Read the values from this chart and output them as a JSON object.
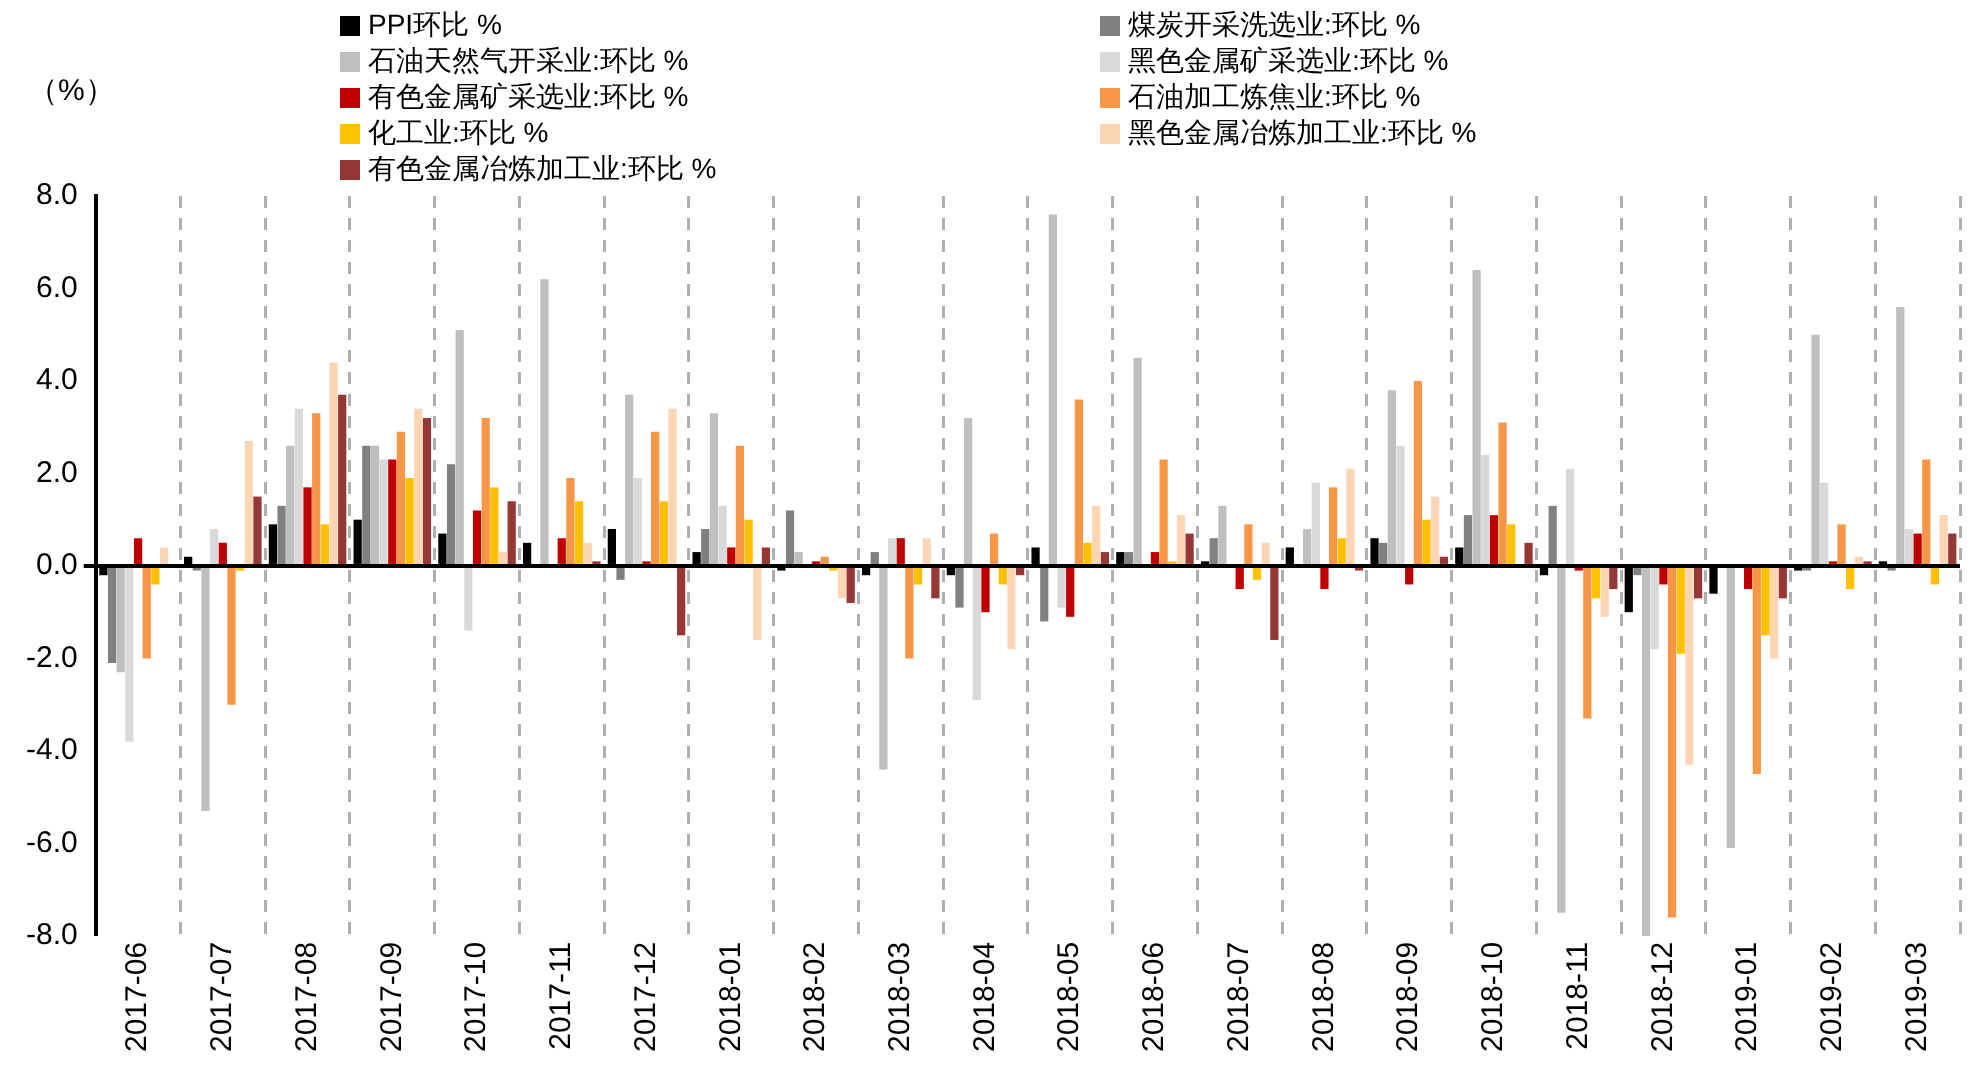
{
  "chart_data": {
    "type": "bar",
    "ylabel": "（%）",
    "legend": "top",
    "grid": "x",
    "categories": [
      "2017-06",
      "2017-07",
      "2017-08",
      "2017-09",
      "2017-10",
      "2017-11",
      "2017-12",
      "2018-01",
      "2018-02",
      "2018-03",
      "2018-04",
      "2018-05",
      "2018-06",
      "2018-07",
      "2018-08",
      "2018-09",
      "2018-10",
      "2018-11",
      "2018-12",
      "2019-01",
      "2019-02",
      "2019-03"
    ],
    "ylim": [
      -8,
      8
    ],
    "yticks": [
      {
        "value": -8,
        "label": "-8.0"
      },
      {
        "value": -6,
        "label": "-6.0"
      },
      {
        "value": -4,
        "label": "-4.0"
      },
      {
        "value": -2,
        "label": "-2.0"
      },
      {
        "value": 0,
        "label": "0.0"
      },
      {
        "value": 2,
        "label": "2.0"
      },
      {
        "value": 4,
        "label": "4.0"
      },
      {
        "value": 6,
        "label": "6.0"
      },
      {
        "value": 8,
        "label": "8.0"
      }
    ],
    "series": [
      {
        "name": "PPI环比 %",
        "color": "#000000",
        "values": [
          -0.2,
          0.2,
          0.9,
          1.0,
          0.7,
          0.5,
          0.8,
          0.3,
          -0.1,
          -0.2,
          -0.2,
          0.4,
          0.3,
          0.1,
          0.4,
          0.6,
          0.4,
          -0.2,
          -1.0,
          -0.6,
          -0.1,
          0.1
        ]
      },
      {
        "name": "煤炭开采洗选业:环比 %",
        "color": "#808080",
        "values": [
          -2.1,
          -0.1,
          1.3,
          2.6,
          2.2,
          0.0,
          -0.3,
          0.8,
          1.2,
          0.3,
          -0.9,
          -1.2,
          0.3,
          0.6,
          0.0,
          0.5,
          1.1,
          1.3,
          -0.2,
          0.0,
          -0.1,
          -0.1
        ]
      },
      {
        "name": "石油天然气开采业:环比 %",
        "color": "#bfbfbf",
        "values": [
          -2.3,
          -5.3,
          2.6,
          2.6,
          5.1,
          6.2,
          3.7,
          3.3,
          0.3,
          -4.4,
          3.2,
          7.6,
          4.5,
          1.3,
          0.8,
          3.8,
          6.4,
          -7.5,
          -8.0,
          -6.1,
          5.0,
          5.6
        ]
      },
      {
        "name": "黑色金属矿采选业:环比 %",
        "color": "#d9d9d9",
        "values": [
          -3.8,
          0.8,
          3.4,
          2.3,
          -1.4,
          null,
          1.9,
          1.3,
          0.0,
          0.6,
          -2.9,
          -0.9,
          0.0,
          null,
          1.8,
          2.6,
          2.4,
          2.1,
          -1.8,
          0.0,
          1.8,
          0.8
        ]
      },
      {
        "name": "有色金属矿采选业:环比 %",
        "color": "#c00000",
        "values": [
          0.6,
          0.5,
          1.7,
          2.3,
          1.2,
          0.6,
          0.1,
          0.4,
          0.1,
          0.6,
          -1.0,
          -1.1,
          0.3,
          -0.5,
          -0.5,
          -0.4,
          1.1,
          -0.1,
          -0.4,
          -0.5,
          0.1,
          0.7
        ]
      },
      {
        "name": "石油加工炼焦业:环比 %",
        "color": "#f79646",
        "values": [
          -2.0,
          -3.0,
          3.3,
          2.9,
          3.2,
          1.9,
          2.9,
          2.6,
          0.2,
          -2.0,
          0.7,
          3.6,
          2.3,
          0.9,
          1.7,
          4.0,
          3.1,
          -3.3,
          -7.6,
          -4.5,
          0.9,
          2.3
        ]
      },
      {
        "name": "化工业:环比 %",
        "color": "#ffc000",
        "values": [
          -0.4,
          -0.1,
          0.9,
          1.9,
          1.7,
          1.4,
          1.4,
          1.0,
          -0.1,
          -0.4,
          -0.4,
          0.5,
          0.1,
          -0.3,
          0.6,
          1.0,
          0.9,
          -0.7,
          -1.9,
          -1.5,
          -0.5,
          -0.4
        ]
      },
      {
        "name": "黑色金属冶炼加工业:环比 %",
        "color": "#fcd5b5",
        "values": [
          0.4,
          2.7,
          4.4,
          3.4,
          0.3,
          0.5,
          3.4,
          -1.6,
          -0.7,
          0.6,
          -1.8,
          1.3,
          1.1,
          0.5,
          2.1,
          1.5,
          0.0,
          -1.1,
          -4.3,
          -2.0,
          0.2,
          1.1
        ]
      },
      {
        "name": "有色金属冶炼加工业:环比 %",
        "color": "#953735",
        "values": [
          0.0,
          1.5,
          3.7,
          3.2,
          1.4,
          0.1,
          -1.5,
          0.4,
          -0.8,
          -0.7,
          -0.2,
          0.3,
          0.7,
          -1.6,
          -0.1,
          0.2,
          0.5,
          -0.5,
          -0.7,
          -0.7,
          0.1,
          0.7
        ]
      }
    ]
  }
}
